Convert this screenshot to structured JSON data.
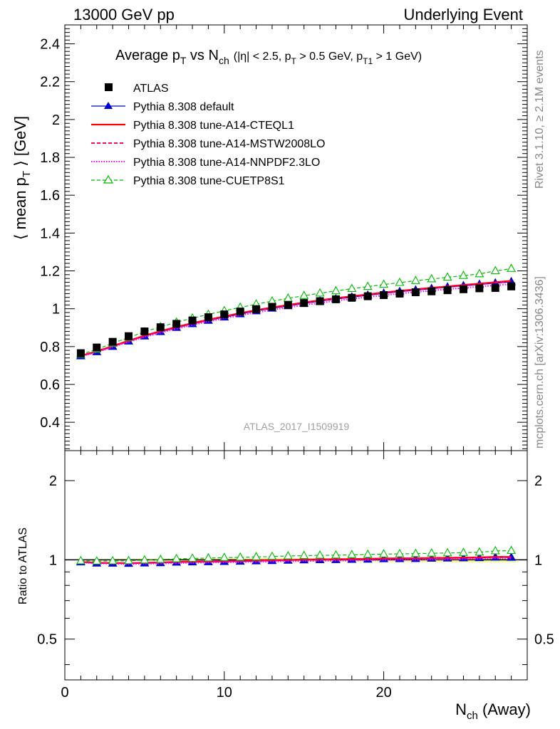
{
  "header": {
    "left": "13000 GeV pp",
    "right": "Underlying Event"
  },
  "side_text": {
    "rivet": "Rivet 3.1.10, ≥ 2.1M events",
    "mcplots": "mcplots.cern.ch [arXiv:1306.3436]"
  },
  "watermark": "ATLAS_2017_I1509919",
  "chart_data": {
    "type": "line",
    "title": {
      "main": "Average p",
      "t_sub": "T",
      "vs": " vs N",
      "ch_sub": "ch",
      "cuts": "(|η| < 2.5, p",
      "c1": " > 0.5 GeV, p",
      "t1_sub": "T1",
      "c2": " > 1 GeV)"
    },
    "ylabel": {
      "pre": "⟨ mean p",
      "sub": "T",
      "post": " ⟩ [GeV]"
    },
    "xlabel": {
      "pre": "N",
      "sub": "ch",
      "post": " (Away)"
    },
    "ratio_ylabel": "Ratio to ATLAS",
    "xlim": [
      0,
      29
    ],
    "ylim": [
      0.25,
      2.5
    ],
    "ratio_ylim": [
      0.35,
      2.6
    ],
    "x_ticks": [
      "0",
      "10",
      "20"
    ],
    "y_ticks": [
      "0.4",
      "0.6",
      "0.8",
      "1",
      "1.2",
      "1.4",
      "1.6",
      "1.8",
      "2",
      "2.2",
      "2.4"
    ],
    "ratio_ticks_left": [
      "0.5",
      "1",
      "2"
    ],
    "ratio_ticks_right": [
      "0.5",
      "1",
      "2"
    ],
    "x": [
      1,
      2,
      3,
      4,
      5,
      6,
      7,
      8,
      9,
      10,
      11,
      12,
      13,
      14,
      15,
      16,
      17,
      18,
      19,
      20,
      21,
      22,
      23,
      24,
      25,
      26,
      27,
      28
    ],
    "series": [
      {
        "name": "ATLAS",
        "style": "data",
        "color": "#000000",
        "values": [
          0.765,
          0.795,
          0.825,
          0.855,
          0.88,
          0.902,
          0.92,
          0.938,
          0.955,
          0.97,
          0.985,
          0.998,
          1.01,
          1.02,
          1.03,
          1.04,
          1.05,
          1.058,
          1.066,
          1.072,
          1.08,
          1.087,
          1.092,
          1.098,
          1.103,
          1.108,
          1.11,
          1.118
        ]
      },
      {
        "name": "Pythia 8.308 default",
        "style": "blue-tri",
        "color": "#0000cc",
        "values": [
          0.75,
          0.772,
          0.8,
          0.828,
          0.855,
          0.878,
          0.9,
          0.92,
          0.938,
          0.955,
          0.972,
          0.988,
          1.002,
          1.015,
          1.028,
          1.04,
          1.051,
          1.061,
          1.071,
          1.081,
          1.09,
          1.098,
          1.106,
          1.114,
          1.121,
          1.128,
          1.135,
          1.142
        ]
      },
      {
        "name": "Pythia 8.308 tune-A14-CTEQL1",
        "style": "red-solid",
        "color": "#ff0000",
        "values": [
          0.752,
          0.775,
          0.803,
          0.831,
          0.858,
          0.882,
          0.904,
          0.924,
          0.942,
          0.96,
          0.977,
          0.993,
          1.007,
          1.02,
          1.033,
          1.045,
          1.056,
          1.066,
          1.076,
          1.086,
          1.095,
          1.103,
          1.111,
          1.118,
          1.126,
          1.133,
          1.14,
          1.148
        ]
      },
      {
        "name": "Pythia 8.308 tune-A14-MSTW2008LO",
        "style": "pink-dash",
        "color": "#ff0066",
        "values": [
          0.75,
          0.773,
          0.801,
          0.829,
          0.856,
          0.88,
          0.902,
          0.922,
          0.94,
          0.958,
          0.975,
          0.991,
          1.005,
          1.018,
          1.031,
          1.043,
          1.054,
          1.064,
          1.074,
          1.084,
          1.093,
          1.101,
          1.109,
          1.116,
          1.124,
          1.131,
          1.138,
          1.145
        ]
      },
      {
        "name": "Pythia 8.308 tune-A14-NNPDF2.3LO",
        "style": "magenta-dot",
        "color": "#ff00ff",
        "values": [
          0.748,
          0.77,
          0.797,
          0.824,
          0.85,
          0.873,
          0.894,
          0.914,
          0.932,
          0.949,
          0.965,
          0.98,
          0.994,
          1.007,
          1.019,
          1.031,
          1.042,
          1.052,
          1.062,
          1.071,
          1.08,
          1.088,
          1.096,
          1.103,
          1.11,
          1.117,
          1.124,
          1.13
        ]
      },
      {
        "name": "Pythia 8.308 tune-CUETP8S1",
        "style": "green-tri",
        "color": "#00bb00",
        "values": [
          0.758,
          0.786,
          0.817,
          0.848,
          0.878,
          0.904,
          0.928,
          0.95,
          0.97,
          0.989,
          1.007,
          1.024,
          1.04,
          1.055,
          1.069,
          1.082,
          1.094,
          1.106,
          1.117,
          1.128,
          1.138,
          1.148,
          1.157,
          1.166,
          1.175,
          1.184,
          1.2,
          1.212
        ]
      }
    ]
  }
}
